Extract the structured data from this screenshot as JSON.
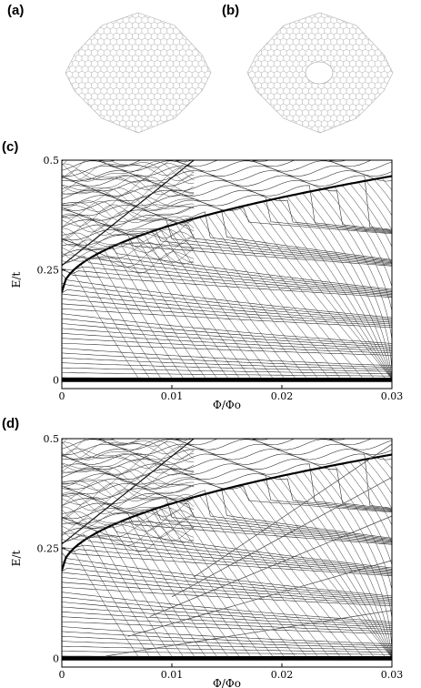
{
  "panels": {
    "a": {
      "label": "(a)"
    },
    "b": {
      "label": "(b)"
    },
    "c": {
      "label": "(c)"
    },
    "d": {
      "label": "(d)"
    }
  },
  "chart_data": [
    {
      "type": "line",
      "panel": "(c)",
      "xlabel": "Φ/Φo",
      "ylabel": "E/t",
      "xlim": [
        0,
        0.03
      ],
      "ylim": [
        -0.02,
        0.5
      ],
      "xticks": [
        "0",
        "0.01",
        "0.02",
        "0.03"
      ],
      "yticks": [
        "0",
        "0.25",
        "0.5"
      ],
      "zero_mode_band": [
        0,
        0.01
      ],
      "landau_envelope": {
        "x": [
          0,
          0.005,
          0.01,
          0.015,
          0.02,
          0.025
        ],
        "y": [
          0.2,
          0.3,
          0.36,
          0.41,
          0.46,
          0.5
        ]
      },
      "series_description": "many energy levels vs flux; descending levels condensing into zero-energy band"
    },
    {
      "type": "line",
      "panel": "(d)",
      "xlabel": "Φ/Φo",
      "ylabel": "E/t",
      "xlim": [
        0,
        0.03
      ],
      "ylim": [
        -0.02,
        0.5
      ],
      "xticks": [
        "0",
        "0.01",
        "0.02",
        "0.03"
      ],
      "yticks": [
        "0",
        "0.25",
        "0.5"
      ],
      "zero_mode_band": [
        0,
        0.01
      ],
      "landau_envelope": {
        "x": [
          0,
          0.005,
          0.01,
          0.015,
          0.02,
          0.025
        ],
        "y": [
          0.2,
          0.3,
          0.36,
          0.41,
          0.46,
          0.5
        ]
      },
      "series_description": "energy levels vs flux for lattice with hole; extra rising edge-state lines"
    }
  ]
}
